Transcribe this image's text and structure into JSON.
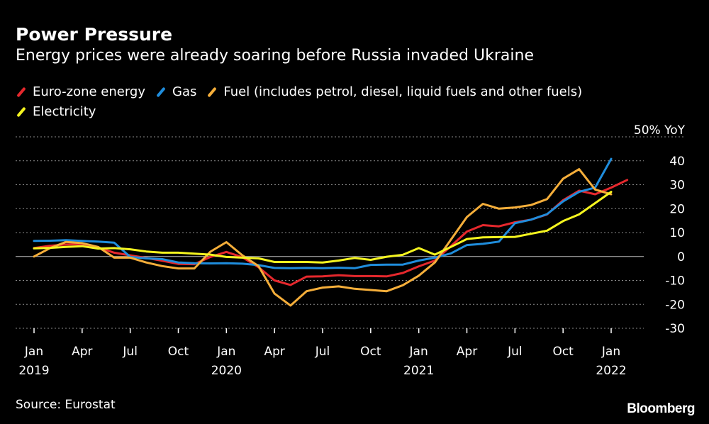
{
  "chart_data": {
    "type": "line",
    "title": "Power Pressure",
    "subtitle": "Energy prices were already soaring before Russia invaded Ukraine",
    "y_unit": "50% YoY",
    "ylim": [
      -30,
      50
    ],
    "yticks": [
      40,
      30,
      20,
      10,
      0,
      -10,
      -20,
      -30
    ],
    "x_start": "Jan 2019",
    "x_end": "Mar 2022",
    "x_ticks": [
      {
        "month": 0,
        "label": "Jan",
        "year": "2019"
      },
      {
        "month": 3,
        "label": "Apr",
        "year": ""
      },
      {
        "month": 6,
        "label": "Jul",
        "year": ""
      },
      {
        "month": 9,
        "label": "Oct",
        "year": ""
      },
      {
        "month": 12,
        "label": "Jan",
        "year": "2020"
      },
      {
        "month": 15,
        "label": "Apr",
        "year": ""
      },
      {
        "month": 18,
        "label": "Jul",
        "year": ""
      },
      {
        "month": 21,
        "label": "Oct",
        "year": ""
      },
      {
        "month": 24,
        "label": "Jan",
        "year": "2021"
      },
      {
        "month": 27,
        "label": "Apr",
        "year": ""
      },
      {
        "month": 30,
        "label": "Jul",
        "year": ""
      },
      {
        "month": 33,
        "label": "Oct",
        "year": ""
      },
      {
        "month": 36,
        "label": "Jan",
        "year": "2022"
      }
    ],
    "series": [
      {
        "name": "Euro-zone energy",
        "color": "#e6282d",
        "values": [
          3.5,
          4.5,
          5.0,
          5.2,
          3.8,
          1.6,
          0.5,
          -0.6,
          -1.8,
          -3.1,
          -3.2,
          -0.2,
          1.9,
          -0.3,
          -4.5,
          -10.0,
          -11.9,
          -8.4,
          -8.3,
          -7.8,
          -8.2,
          -8.2,
          -8.3,
          -6.9,
          -4.1,
          -1.7,
          4.3,
          10.4,
          13.1,
          12.6,
          14.3,
          15.4,
          17.6,
          23.5,
          27.5,
          26.0,
          28.8,
          32.0
        ]
      },
      {
        "name": "Gas",
        "color": "#1f8ddc",
        "values": [
          6.5,
          6.6,
          6.8,
          6.5,
          6.2,
          5.8,
          -0.2,
          -0.8,
          -1.1,
          -2.5,
          -2.8,
          -2.9,
          -2.8,
          -3.0,
          -3.6,
          -4.8,
          -4.9,
          -4.8,
          -4.9,
          -4.7,
          -4.9,
          -3.5,
          -3.4,
          -3.4,
          -1.7,
          -0.5,
          1.3,
          4.8,
          5.3,
          6.2,
          13.9,
          15.4,
          17.7,
          23.0,
          27.0,
          28.8,
          40.8
        ]
      },
      {
        "name": "Fuel (includes petrol, diesel, liquid fuels and other fuels)",
        "color": "#f5ae3a",
        "values": [
          0.0,
          3.5,
          6.1,
          5.6,
          4.0,
          -0.5,
          -0.5,
          -2.5,
          -4.0,
          -5.0,
          -5.0,
          2.0,
          6.0,
          0.5,
          -4.0,
          -15.5,
          -20.5,
          -14.5,
          -13.0,
          -12.5,
          -13.5,
          -14.0,
          -14.5,
          -12.0,
          -8.0,
          -2.5,
          7.0,
          16.5,
          22.0,
          20.0,
          20.5,
          21.5,
          24.0,
          32.5,
          36.5,
          28.0,
          26.0
        ]
      },
      {
        "name": "Electricity",
        "color": "#f5f51f",
        "values": [
          3.4,
          3.6,
          4.0,
          4.3,
          3.3,
          3.5,
          3.0,
          2.1,
          1.6,
          1.6,
          1.2,
          0.8,
          -0.2,
          -0.5,
          -0.8,
          -2.3,
          -2.3,
          -2.3,
          -2.5,
          -1.7,
          -0.6,
          -1.4,
          -0.1,
          0.7,
          3.5,
          0.8,
          4.0,
          7.3,
          8.0,
          8.1,
          8.2,
          9.5,
          10.8,
          14.8,
          17.6,
          22.3,
          27.0
        ]
      }
    ]
  },
  "source": "Source: Eurostat",
  "brand": "Bloomberg"
}
